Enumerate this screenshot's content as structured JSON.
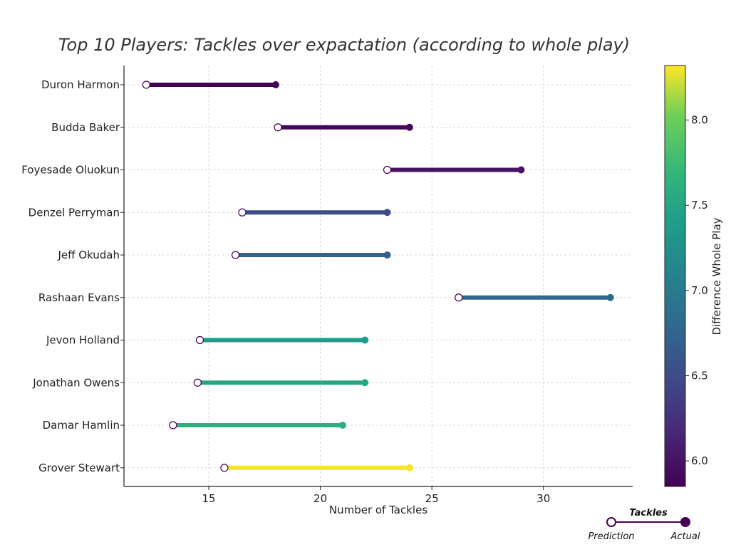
{
  "chart_data": {
    "type": "dumbbell",
    "title": "Top 10 Players: Tackles over expactation (according to whole play)",
    "xlabel": "Number of Tackles",
    "xlim": [
      11.2,
      34.0
    ],
    "xticks": [
      15,
      20,
      25,
      30
    ],
    "grid": true,
    "colorbar": {
      "label": "Difference Whole Play",
      "range": [
        5.85,
        8.32
      ],
      "ticks": [
        6.0,
        6.5,
        7.0,
        7.5,
        8.0
      ],
      "colormap": "viridis"
    },
    "legend": {
      "title": "Tackles",
      "start_label": "Prediction",
      "end_label": "Actual",
      "placement": "bottom-right"
    },
    "players": [
      {
        "name": "Duron Harmon",
        "prediction": 12.2,
        "actual": 18.0,
        "difference": 5.85
      },
      {
        "name": "Budda Baker",
        "prediction": 18.1,
        "actual": 24.0,
        "difference": 5.9
      },
      {
        "name": "Foyesade Oluokun",
        "prediction": 23.0,
        "actual": 29.0,
        "difference": 6.0
      },
      {
        "name": "Denzel Perryman",
        "prediction": 16.5,
        "actual": 23.0,
        "difference": 6.5
      },
      {
        "name": "Jeff Okudah",
        "prediction": 16.2,
        "actual": 23.0,
        "difference": 6.75
      },
      {
        "name": "Rashaan Evans",
        "prediction": 26.2,
        "actual": 33.0,
        "difference": 6.8
      },
      {
        "name": "Jevon Holland",
        "prediction": 14.6,
        "actual": 22.0,
        "difference": 7.4
      },
      {
        "name": "Jonathan Owens",
        "prediction": 14.5,
        "actual": 22.0,
        "difference": 7.5
      },
      {
        "name": "Damar Hamlin",
        "prediction": 13.4,
        "actual": 21.0,
        "difference": 7.6
      },
      {
        "name": "Grover Stewart",
        "prediction": 15.7,
        "actual": 24.0,
        "difference": 8.3
      }
    ]
  }
}
